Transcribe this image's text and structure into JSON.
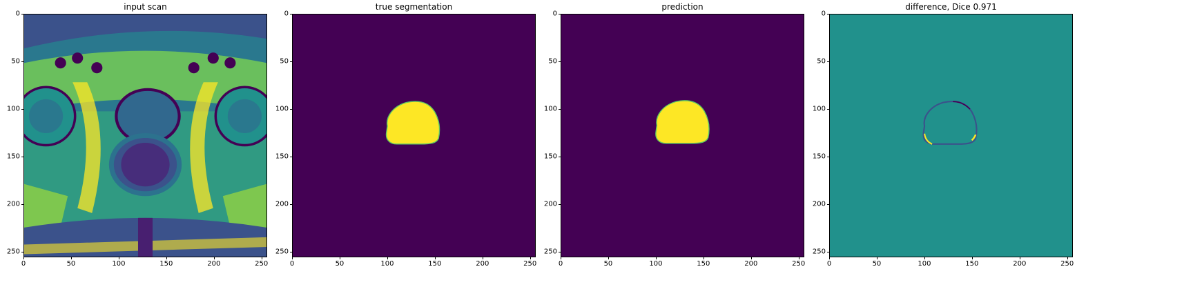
{
  "figure": {
    "panels": [
      {
        "id": "input",
        "title": "input scan"
      },
      {
        "id": "truth",
        "title": "true segmentation"
      },
      {
        "id": "pred",
        "title": "prediction"
      },
      {
        "id": "diff",
        "title": "difference, Dice 0.971"
      }
    ],
    "ticks": {
      "x": [
        "0",
        "50",
        "100",
        "150",
        "200",
        "250"
      ],
      "y": [
        "0",
        "50",
        "100",
        "150",
        "200",
        "250"
      ]
    },
    "tick_values": [
      0,
      50,
      100,
      150,
      200,
      250
    ],
    "image_extent": [
      0,
      256
    ],
    "colors": {
      "viridis_low": "#440154",
      "viridis_mid": "#21918c",
      "viridis_high": "#fde725",
      "viridis_green": "#5ec962",
      "viridis_blue": "#3b528b"
    }
  }
}
